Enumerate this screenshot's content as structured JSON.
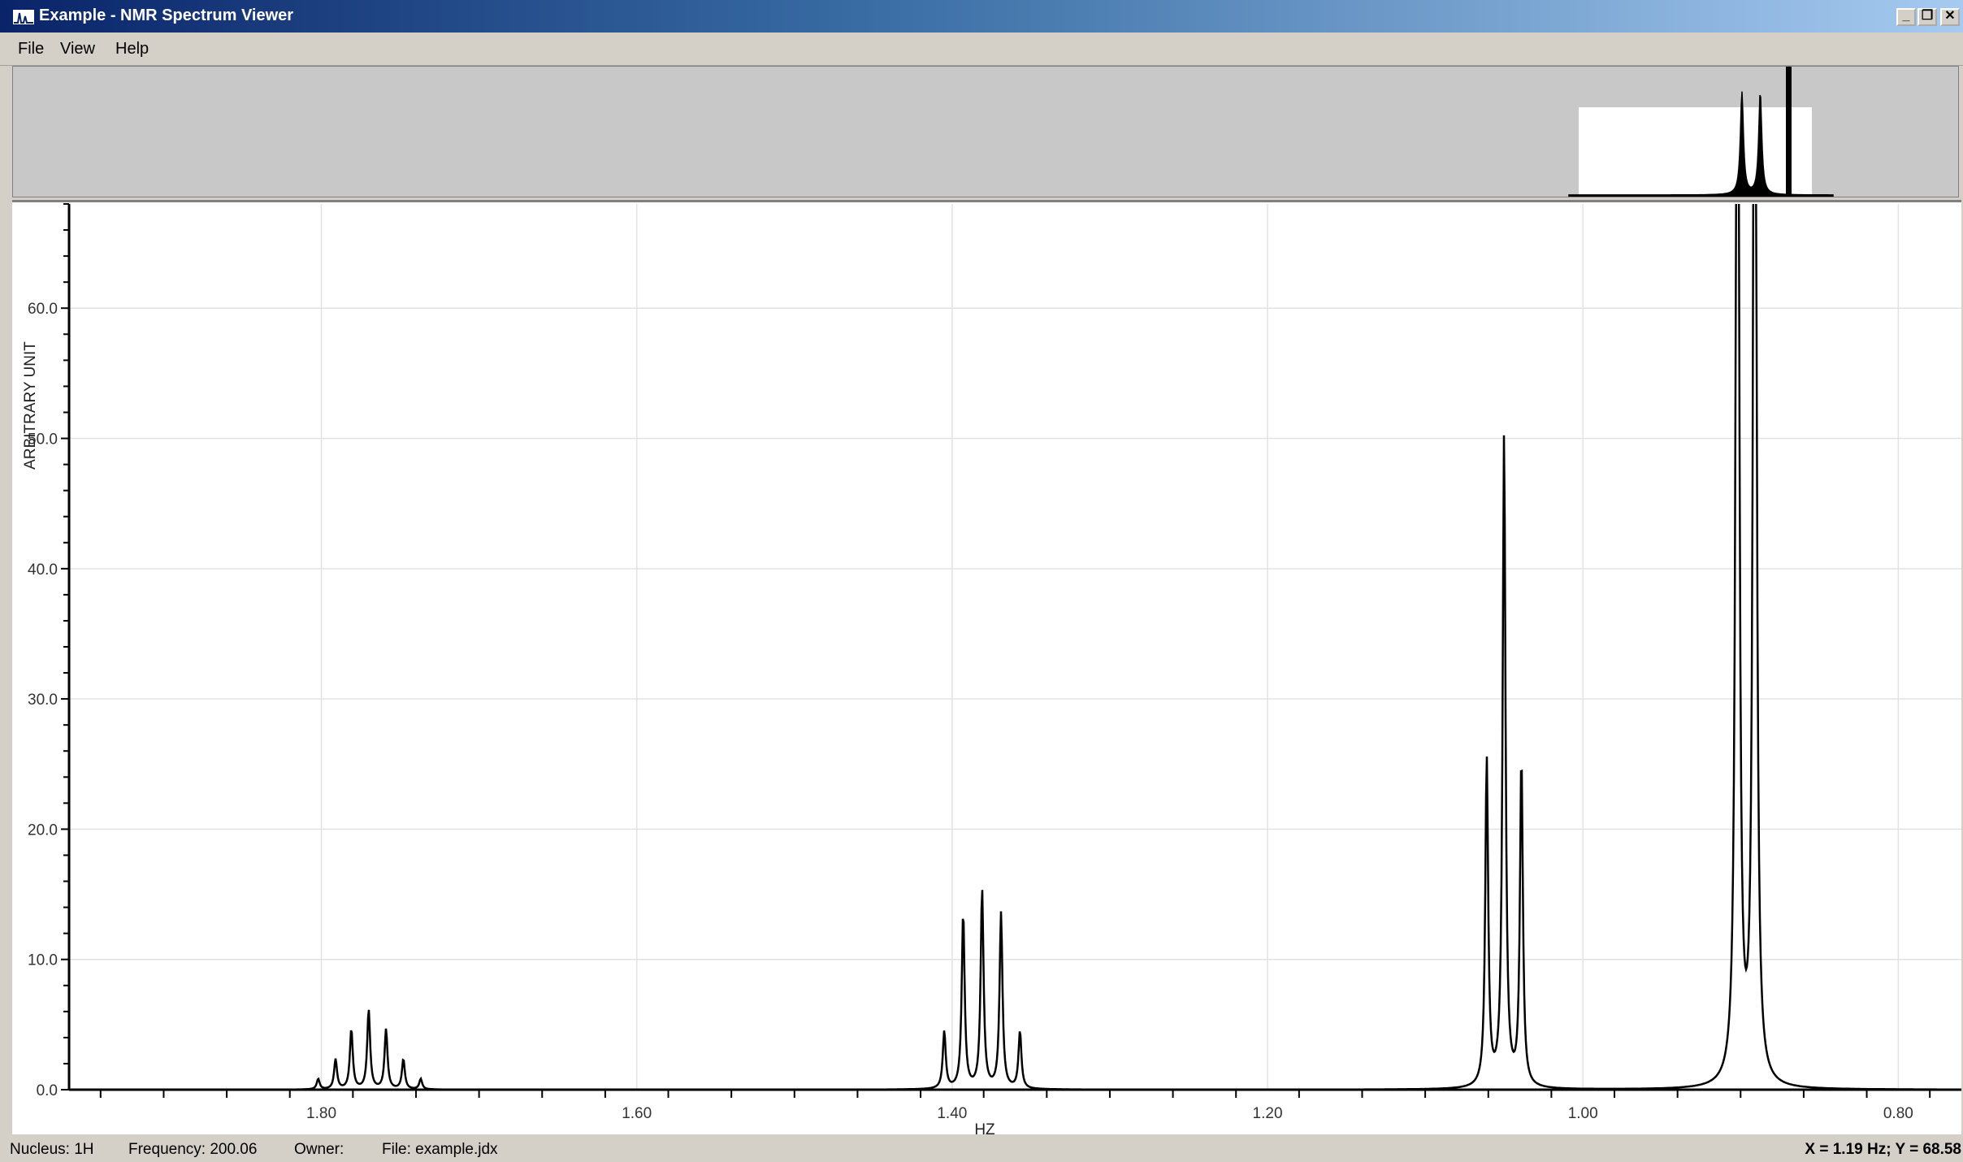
{
  "window": {
    "title": "Example - NMR Spectrum Viewer",
    "icon": "spectrum-icon",
    "controls": {
      "minimize": "_",
      "restore": "❐",
      "close": "✕"
    }
  },
  "menu": {
    "items": [
      {
        "label": "File"
      },
      {
        "label": "View"
      },
      {
        "label": "Help"
      }
    ]
  },
  "status": {
    "nucleus": "Nucleus: 1H",
    "frequency": "Frequency: 200.06",
    "owner": "Owner:",
    "file": "File: example.jdx",
    "cursor": "X = 1.19 Hz; Y = 68.58"
  },
  "overview": {
    "visible_range": [
      1.0,
      0.86
    ]
  },
  "chart_data": {
    "type": "line",
    "xlabel": "HZ",
    "ylabel": "ARBITRARY UNIT",
    "x_reversed": true,
    "xlim": [
      1.96,
      0.76
    ],
    "ylim": [
      0,
      68
    ],
    "x_ticks": [
      1.8,
      1.6,
      1.4,
      1.2,
      1.0,
      0.8
    ],
    "x_tick_labels": [
      "1.80",
      "1.60",
      "1.40",
      "1.20",
      "1.00",
      "0.80"
    ],
    "y_ticks": [
      0,
      10,
      20,
      30,
      40,
      50,
      60
    ],
    "y_tick_labels": [
      "0.0",
      "10.0",
      "20.0",
      "30.0",
      "40.0",
      "50.0",
      "60.0"
    ],
    "grid": true,
    "series": [
      {
        "peaks": [
          {
            "x": 1.802,
            "y": 0.8
          },
          {
            "x": 1.791,
            "y": 2.3
          },
          {
            "x": 1.781,
            "y": 4.6
          },
          {
            "x": 1.77,
            "y": 6.1
          },
          {
            "x": 1.759,
            "y": 4.6
          },
          {
            "x": 1.748,
            "y": 2.3
          },
          {
            "x": 1.737,
            "y": 0.8
          },
          {
            "x": 1.405,
            "y": 4.4
          },
          {
            "x": 1.393,
            "y": 13.5
          },
          {
            "x": 1.381,
            "y": 15.3
          },
          {
            "x": 1.369,
            "y": 13.5
          },
          {
            "x": 1.357,
            "y": 4.4
          },
          {
            "x": 1.061,
            "y": 25.2
          },
          {
            "x": 1.05,
            "y": 50.0
          },
          {
            "x": 1.039,
            "y": 25.2
          },
          {
            "x": 0.902,
            "y": 120
          },
          {
            "x": 0.891,
            "y": 120
          }
        ]
      }
    ]
  }
}
